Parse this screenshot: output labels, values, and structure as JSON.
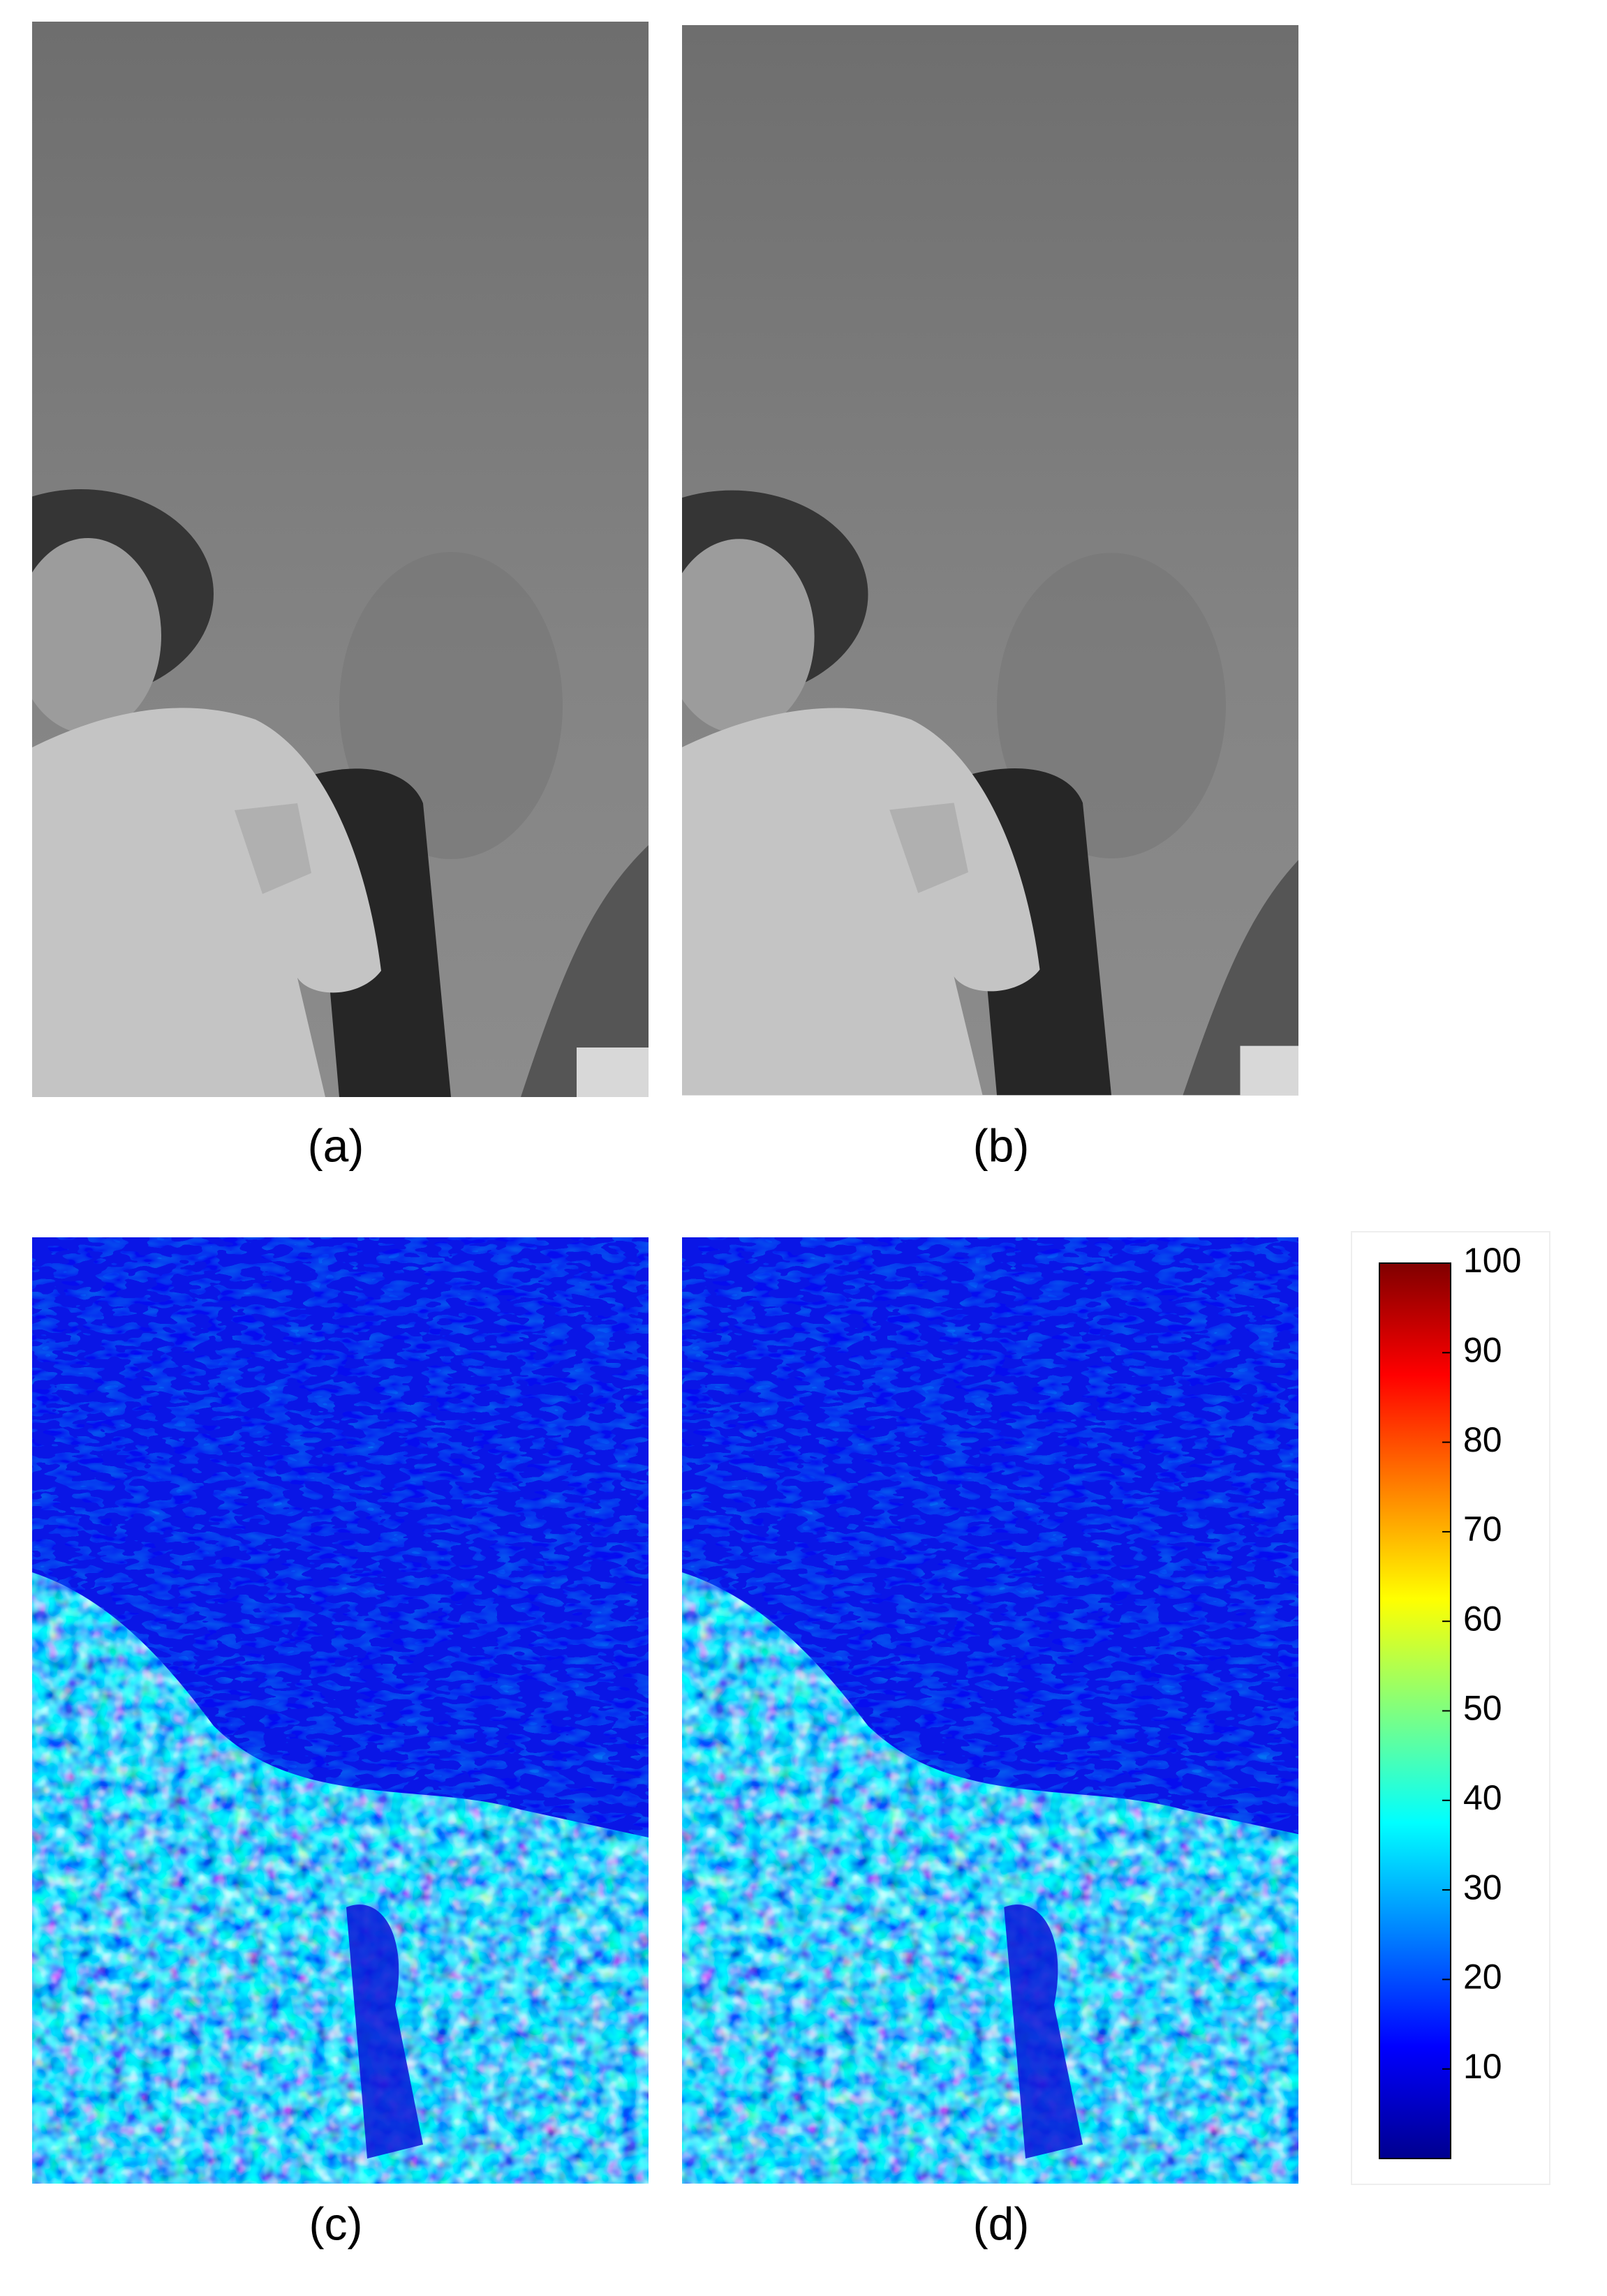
{
  "figure": {
    "panels": [
      {
        "label": "(a)"
      },
      {
        "label": "(b)"
      },
      {
        "label": "(c)"
      },
      {
        "label": "(d)"
      }
    ],
    "colorbar": {
      "lim": [
        0,
        100
      ],
      "ticks": [
        10,
        20,
        30,
        40,
        50,
        60,
        70,
        80,
        90,
        100
      ]
    }
  }
}
